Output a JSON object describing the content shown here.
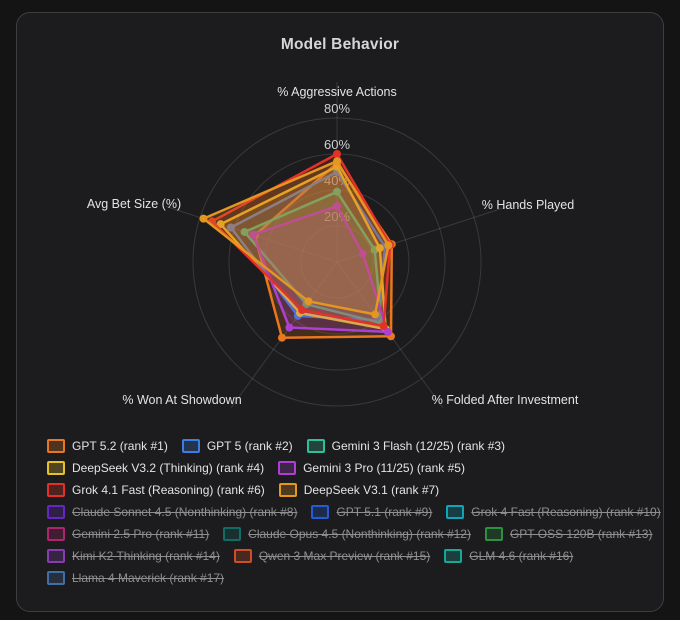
{
  "title": "Model Behavior",
  "colors": {
    "page_background": "#141415",
    "card_background": "#1c1c1e",
    "card_border": "#3e3e40",
    "grid_line": "rgba(255,255,255,0.13)",
    "title_text": "#d6d6d6",
    "axis_label_text": "#e3e3e3",
    "tick_label_text": "#cfcfcf",
    "legend_text": "#e4e4e4",
    "legend_text_disabled": "#8f8f8f"
  },
  "chart_data": {
    "type": "radar",
    "title": "Model Behavior",
    "axes": [
      "% Aggressive Actions",
      "% Hands Played",
      "% Folded After Investment",
      "% Won At Showdown",
      "Avg Bet Size (%)"
    ],
    "tick_labels": [
      "20%",
      "40%",
      "60%",
      "80%"
    ],
    "tick_values": [
      20,
      40,
      60,
      80
    ],
    "axis_range": [
      0,
      100
    ],
    "grid": "circular",
    "legend_position": "bottom",
    "fill_opacity": 0.2,
    "series": [
      {
        "name": "GPT 5.2 (rank #1)",
        "color": "#e8771f",
        "disabled": false,
        "values": [
          55,
          32,
          51,
          52,
          48
        ]
      },
      {
        "name": "GPT 5 (rank #2)",
        "color": "#3d7ce0",
        "disabled": false,
        "values": [
          50,
          28,
          40,
          37,
          62
        ]
      },
      {
        "name": "Gemini 3 Flash (12/25) (rank #3)",
        "color": "#2fbf9a",
        "disabled": false,
        "values": [
          39,
          22,
          42,
          29,
          54
        ]
      },
      {
        "name": "DeepSeek V3.2 (Thinking) (rank #4)",
        "color": "#e6c229",
        "disabled": false,
        "values": [
          53,
          25,
          46,
          35,
          68
        ]
      },
      {
        "name": "Gemini 3 Pro (11/25) (rank #5)",
        "color": "#ad3fd3",
        "disabled": false,
        "values": [
          31,
          15,
          48,
          45,
          49
        ]
      },
      {
        "name": "Grok 4.1 Fast (Reasoning) (rank #6)",
        "color": "#e23228",
        "disabled": false,
        "values": [
          60,
          31,
          44,
          33,
          73
        ]
      },
      {
        "name": "DeepSeek V3.1 (rank #7)",
        "color": "#e39620",
        "disabled": false,
        "values": [
          56,
          30,
          36,
          27,
          78
        ]
      },
      {
        "name": "Claude Sonnet 4.5 (Nonthinking) (rank #8)",
        "color": "#6d28d9",
        "disabled": true,
        "values": null
      },
      {
        "name": "GPT 5.1 (rank #9)",
        "color": "#2563eb",
        "disabled": true,
        "values": null
      },
      {
        "name": "Grok 4 Fast (Reasoning) (rank #10)",
        "color": "#0cb5c9",
        "disabled": true,
        "values": null
      },
      {
        "name": "Gemini 2.5 Pro (rank #11)",
        "color": "#c02578",
        "disabled": true,
        "values": null
      },
      {
        "name": "Claude Opus 4.5 (Nonthinking) (rank #12)",
        "color": "#0f766e",
        "disabled": true,
        "values": null
      },
      {
        "name": "GPT OSS 120B (rank #13)",
        "color": "#2e9e44",
        "disabled": true,
        "values": null
      },
      {
        "name": "Kimi K2 Thinking (rank #14)",
        "color": "#9440c4",
        "disabled": true,
        "values": null
      },
      {
        "name": "Qwen 3 Max Preview (rank #15)",
        "color": "#e2542a",
        "disabled": true,
        "values": null
      },
      {
        "name": "GLM 4.6 (rank #16)",
        "color": "#14b8a6",
        "disabled": true,
        "values": null
      },
      {
        "name": "Llama 4 Maverick (rank #17)",
        "color": "#4678b4",
        "disabled": true,
        "values": null
      }
    ]
  },
  "legend_rows": [
    [
      0,
      1,
      2
    ],
    [
      3,
      4
    ],
    [
      5,
      6
    ],
    [
      7,
      8,
      9
    ],
    [
      10,
      11,
      12
    ],
    [
      13,
      14,
      15
    ],
    [
      16
    ]
  ]
}
